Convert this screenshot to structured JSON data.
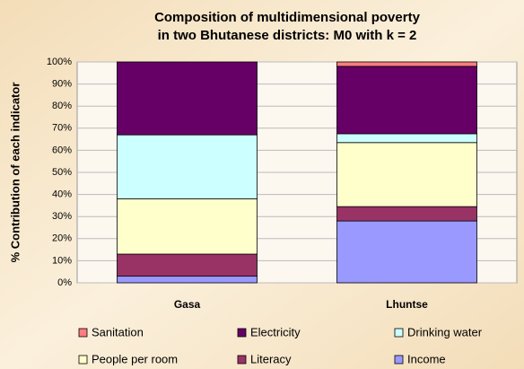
{
  "chart_data": {
    "type": "stacked_bar",
    "title": [
      "Composition of multidimensional poverty",
      "in two Bhutanese districts: M0 with k = 2"
    ],
    "y_label": "% Contribution of each indicator",
    "categories": [
      "Gasa",
      "Lhuntse"
    ],
    "series": [
      {
        "name": "Sanitation",
        "color": "#ff7c80",
        "values": [
          0,
          2
        ]
      },
      {
        "name": "Electricity",
        "color": "#660066",
        "values": [
          33,
          30.5
        ]
      },
      {
        "name": "Drinking water",
        "color": "#ccffff",
        "values": [
          29,
          4
        ]
      },
      {
        "name": "People per room",
        "color": "#ffffcc",
        "values": [
          25,
          29
        ]
      },
      {
        "name": "Literacy",
        "color": "#993366",
        "values": [
          10,
          6.5
        ]
      },
      {
        "name": "Income",
        "color": "#9999ff",
        "values": [
          3,
          28
        ]
      }
    ],
    "ylim": [
      0,
      100
    ],
    "yticks": [
      {
        "value": 0,
        "label": "0%"
      },
      {
        "value": 10,
        "label": "10%"
      },
      {
        "value": 20,
        "label": "20%"
      },
      {
        "value": 30,
        "label": "30%"
      },
      {
        "value": 40,
        "label": "40%"
      },
      {
        "value": 50,
        "label": "50%"
      },
      {
        "value": 60,
        "label": "60%"
      },
      {
        "value": 70,
        "label": "70%"
      },
      {
        "value": 80,
        "label": "80%"
      },
      {
        "value": 90,
        "label": "90%"
      },
      {
        "value": 100,
        "label": "100%"
      }
    ],
    "grid": true,
    "legend": "bottom"
  }
}
